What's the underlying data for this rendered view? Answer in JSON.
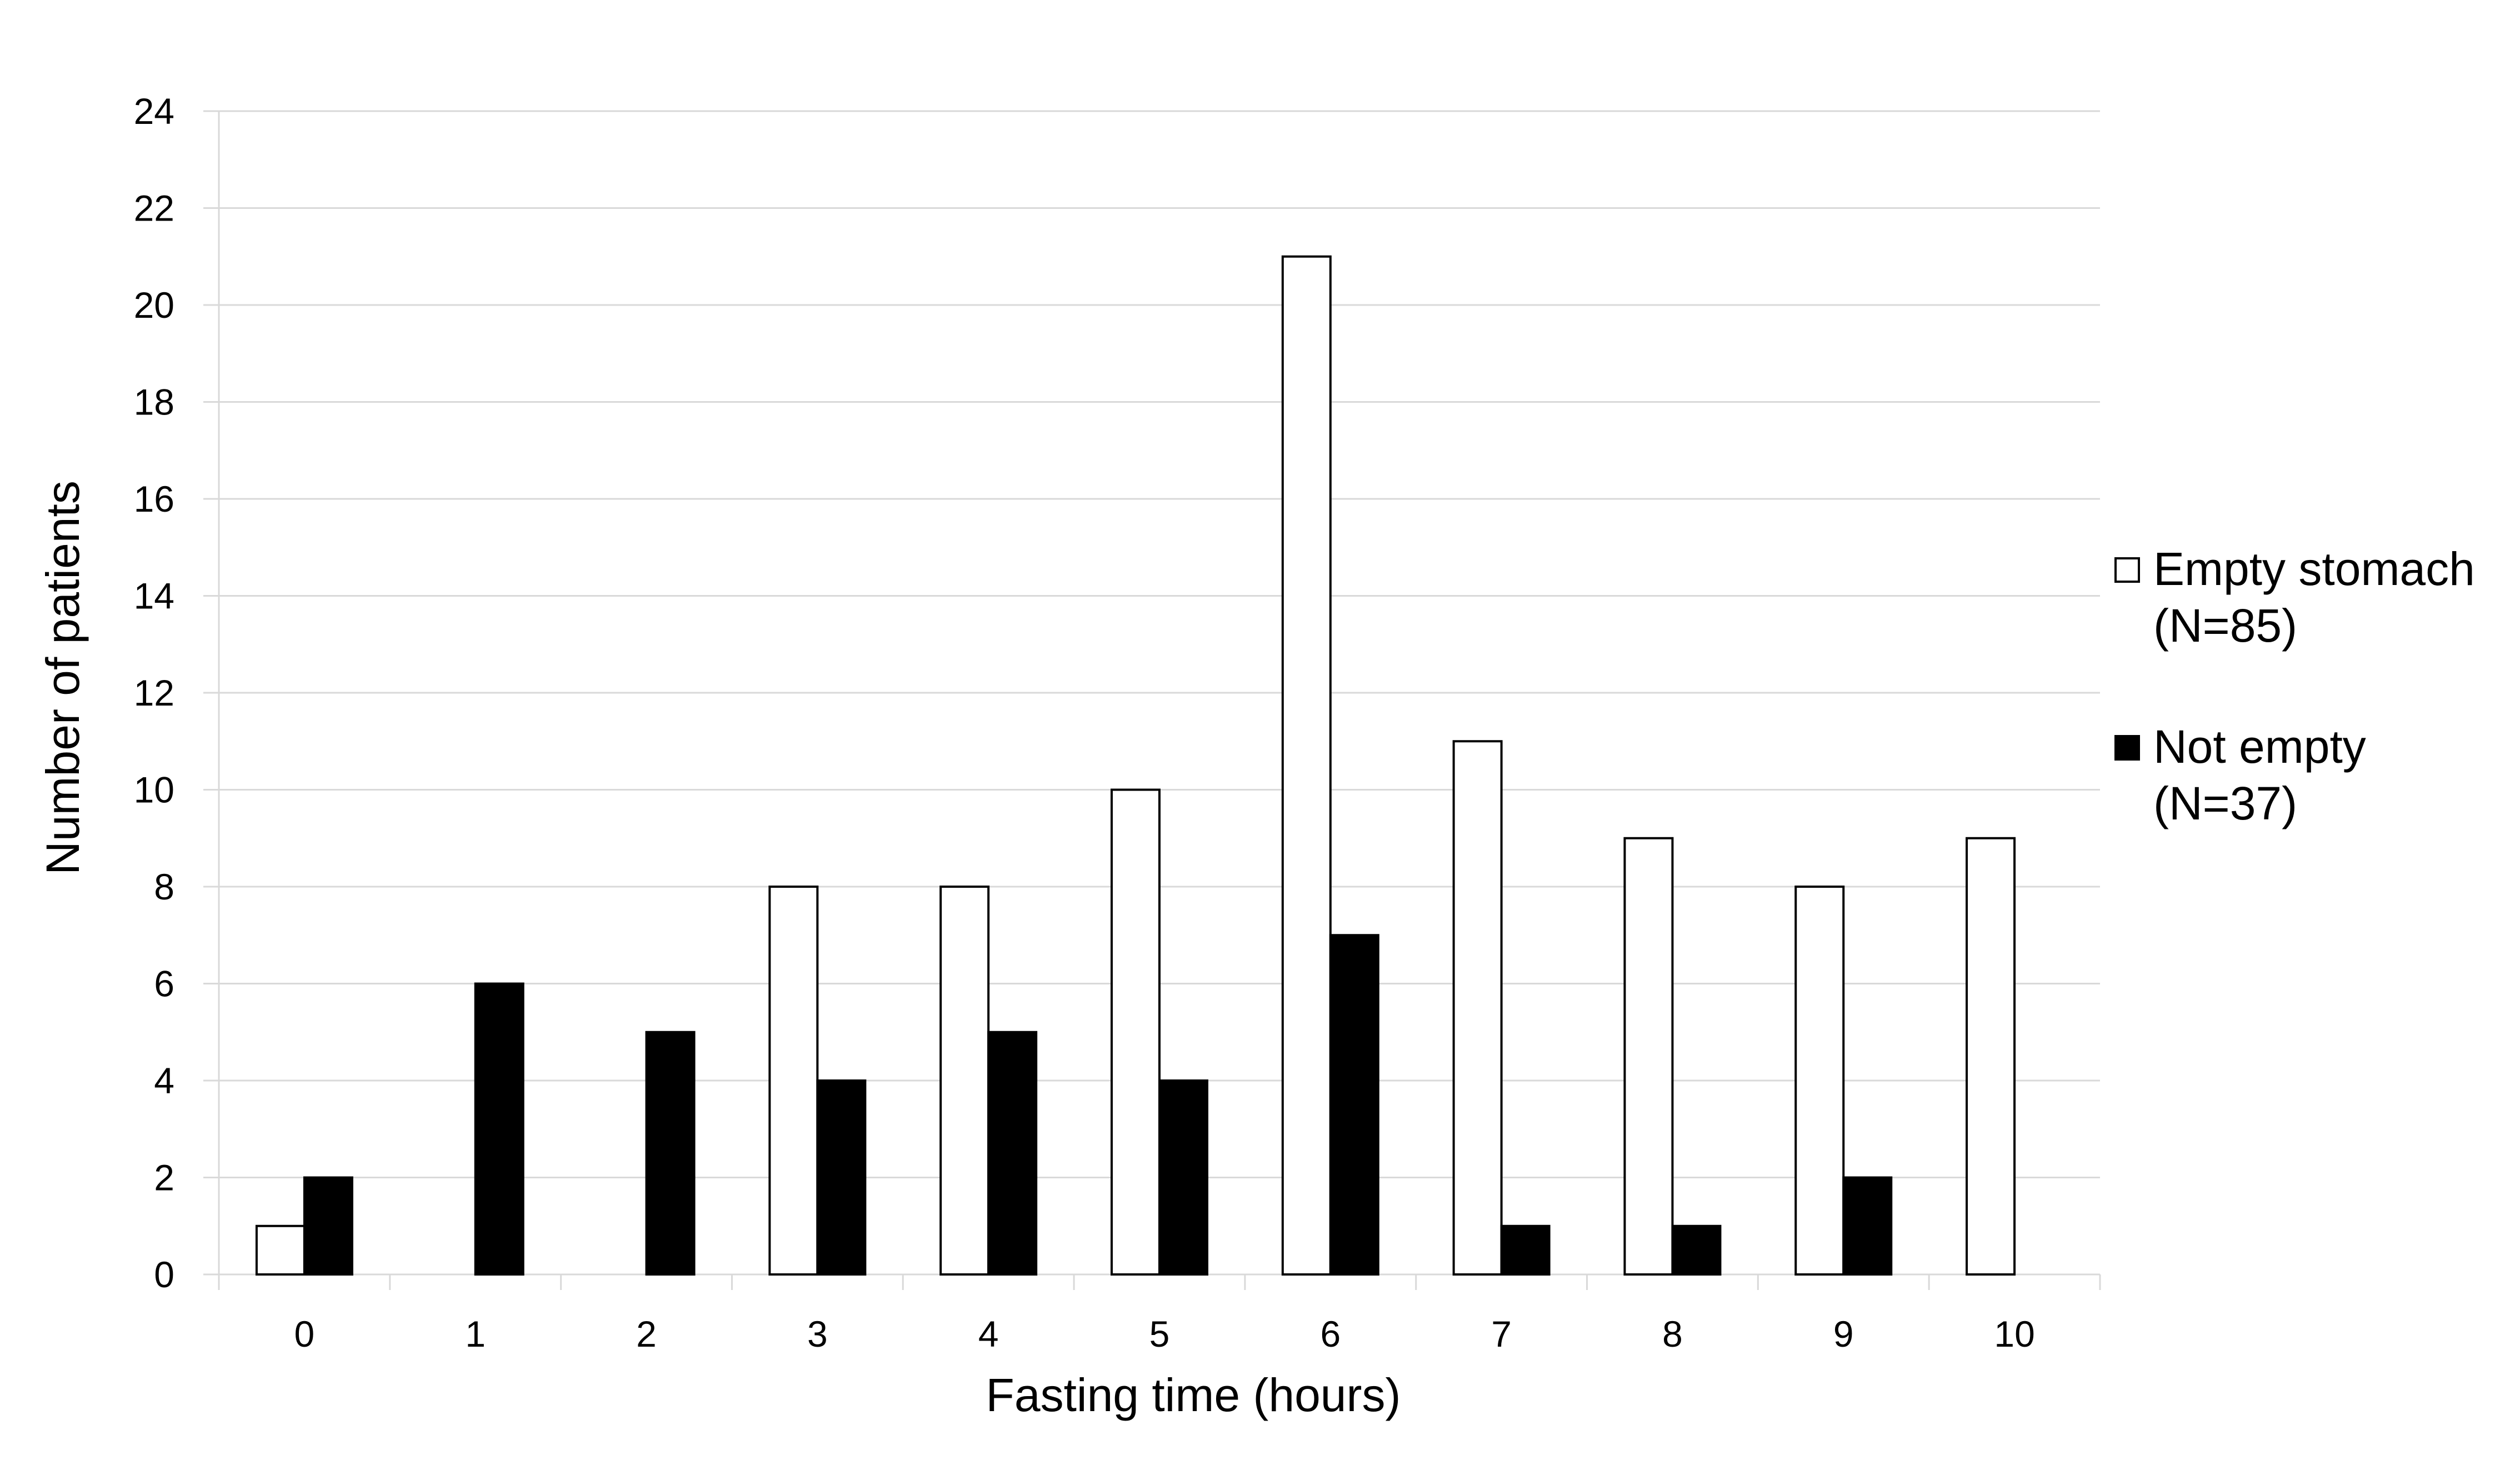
{
  "chart_data": {
    "type": "bar",
    "title": "",
    "xlabel": "Fasting time (hours)",
    "ylabel": "Number of patients",
    "categories": [
      "0",
      "1",
      "2",
      "3",
      "4",
      "5",
      "6",
      "7",
      "8",
      "9",
      "10"
    ],
    "yticks": [
      "0",
      "2",
      "4",
      "6",
      "8",
      "10",
      "12",
      "14",
      "16",
      "18",
      "20",
      "22",
      "24"
    ],
    "ylim": [
      0,
      24
    ],
    "grid": "horizontal",
    "legend_position": "right",
    "series": [
      {
        "legend_line1": "Empty stomach",
        "legend_line2": "(N=85)",
        "fill": "#ffffff",
        "values": [
          1,
          0,
          0,
          8,
          8,
          10,
          21,
          11,
          9,
          8,
          9
        ]
      },
      {
        "legend_line1": "Not empty",
        "legend_line2": "(N=37)",
        "fill": "#000000",
        "values": [
          2,
          6,
          5,
          4,
          5,
          4,
          7,
          1,
          1,
          2,
          0
        ]
      }
    ],
    "colors": {
      "gridline": "#d9d9d9",
      "axis": "#d9d9d9",
      "bar_stroke": "#000000"
    }
  }
}
